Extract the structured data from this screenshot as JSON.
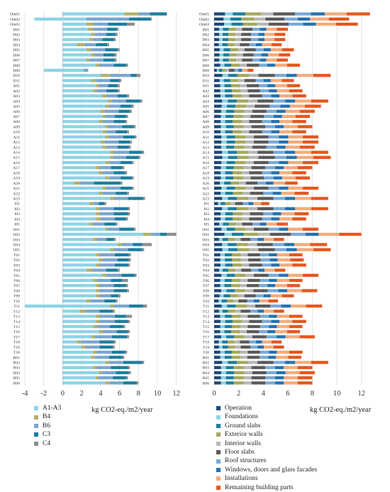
{
  "colors": {
    "A1-A3": "#8ed3e6",
    "B4": "#b4b06a",
    "B6": "#7aa6cf",
    "C3": "#1d7d9e",
    "C4": "#8e8e8e",
    "Operation": "#1e4878",
    "Foundations": "#8ed3e6",
    "Ground slabs": "#1d7d9e",
    "Exterior walls": "#a6a95c",
    "Interior walls": "#b8b8b8",
    "Floor slabs": "#5a5a5a",
    "Roof structures": "#7aaad8",
    "Windows, doors and glass facades": "#2472b0",
    "Installations": "#f4ac7c",
    "Remaining building parts": "#e3581e"
  },
  "chart_data": [
    {
      "type": "bar",
      "orientation": "horizontal",
      "stacked": true,
      "xlabel": "kg CO2-eq./m2/year",
      "xlim": [
        -4,
        13
      ],
      "xticks": [
        -4,
        -2,
        0,
        2,
        4,
        6,
        8,
        10,
        12
      ],
      "grid": true,
      "legend_position": "bottom-left",
      "categories": [
        "Oth01",
        "Oth02",
        "Oth03",
        "D01",
        "D02",
        "D03",
        "D04",
        "D05",
        "D06",
        "D07",
        "D08",
        "D09",
        "D10",
        "D11",
        "A01",
        "A02",
        "A03",
        "A04",
        "A05",
        "A06",
        "A07",
        "A08",
        "A09",
        "A10",
        "A11",
        "A12",
        "A13",
        "A14",
        "A15",
        "A16",
        "A17",
        "A18",
        "A19",
        "A20",
        "A21",
        "A22",
        "A23",
        "I01",
        "I02",
        "I03",
        "I04",
        "I05",
        "O01",
        "O02",
        "O03",
        "O04",
        "O05",
        "T01",
        "T02",
        "T03",
        "T04",
        "T05",
        "T06",
        "T07",
        "T08",
        "T09",
        "T10",
        "T11",
        "T12",
        "T13",
        "T14",
        "T15",
        "T16",
        "T17",
        "T18",
        "T19",
        "T20",
        "B01",
        "B02",
        "B03",
        "B04",
        "B05",
        "B06"
      ],
      "series": [
        {
          "name": "A1-A3",
          "values": [
            6.5,
            2.5,
            2.5,
            2.7,
            3.0,
            2.8,
            1.5,
            2.5,
            3.0,
            2.5,
            3.5,
            2.2,
            4.0,
            3.0,
            3.5,
            3.2,
            4.2,
            4.8,
            4.5,
            4.0,
            4.2,
            3.8,
            4.5,
            4.2,
            4.5,
            4.0,
            4.2,
            5.0,
            5.0,
            4.5,
            3.5,
            3.8,
            4.5,
            1.2,
            4.2,
            3.8,
            5.0,
            2.8,
            3.5,
            3.5,
            3.5,
            2.8,
            4.5,
            8.5,
            3.2,
            5.8,
            5.0,
            3.5,
            3.8,
            3.5,
            2.5,
            4.2,
            3.2,
            3.5,
            3.5,
            3.5,
            2.5,
            5.0,
            1.8,
            3.5,
            3.5,
            3.2,
            3.8,
            3.0,
            1.5,
            2.0,
            3.2,
            3.0,
            4.5,
            3.2,
            3.8,
            3.5,
            4.5
          ]
        },
        {
          "name": "B4",
          "values": [
            1.5,
            0,
            0.8,
            0.5,
            0.4,
            0.4,
            0.8,
            0.5,
            0.3,
            0.3,
            0.4,
            0,
            1.0,
            0.5,
            0.3,
            0.4,
            0.4,
            0.4,
            0.4,
            0.4,
            0.3,
            0.4,
            0.3,
            0.4,
            0.4,
            0.4,
            0.4,
            0.4,
            0.3,
            0.4,
            0.4,
            0.4,
            0.4,
            0.6,
            0.4,
            0.4,
            0.4,
            0.4,
            0.4,
            0.4,
            0.5,
            0.4,
            0.3,
            0.8,
            0.4,
            0.4,
            0.4,
            0.4,
            0.4,
            0.4,
            0.6,
            0.4,
            0.4,
            0.4,
            0.4,
            0.4,
            0.4,
            0.4,
            0.6,
            0.4,
            0.4,
            0.4,
            0.4,
            0.4,
            0.4,
            0.4,
            0.4,
            0.4,
            0.4,
            0.4,
            0.3,
            0.3,
            0.4
          ]
        },
        {
          "name": "B6",
          "values": [
            1.2,
            4.5,
            1.5,
            1.5,
            1.2,
            1.0,
            1.2,
            1.5,
            1.0,
            1.5,
            1.5,
            0.5,
            2.2,
            1.5,
            1.0,
            1.0,
            1.2,
            1.5,
            1.2,
            1.5,
            1.0,
            1.2,
            1.5,
            1.0,
            1.5,
            1.5,
            1.2,
            1.6,
            1.4,
            1.2,
            1.2,
            1.2,
            1.2,
            1.5,
            1.5,
            1.4,
            1.5,
            0.6,
            1.5,
            1.5,
            1.5,
            1.2,
            1.2,
            1.0,
            1.0,
            1.2,
            1.5,
            1.6,
            1.6,
            1.6,
            1.5,
            1.6,
            1.5,
            1.5,
            1.5,
            1.2,
            1.5,
            1.6,
            1.5,
            1.6,
            1.6,
            1.4,
            1.5,
            1.8,
            2.0,
            1.5,
            1.6,
            1.5,
            1.5,
            1.5,
            1.5,
            1.5,
            1.5
          ]
        },
        {
          "name": "C3",
          "values": [
            1.8,
            2.3,
            2.0,
            1.0,
            1.0,
            1.2,
            1.2,
            1.3,
            1.2,
            1.2,
            1.3,
            0,
            0.6,
            1.0,
            1.0,
            1.2,
            1.0,
            1.5,
            1.2,
            1.2,
            1.2,
            1.2,
            1.2,
            1.2,
            1.2,
            1.2,
            1.2,
            1.4,
            1.3,
            1.2,
            1.2,
            1.2,
            1.2,
            2.8,
            1.2,
            1.2,
            1.6,
            0.6,
            1.5,
            1.5,
            1.2,
            1.2,
            1.5,
            0.7,
            0.8,
            1.0,
            1.5,
            1.5,
            1.2,
            1.4,
            1.2,
            1.4,
            1.2,
            1.3,
            1.4,
            0.8,
            1.2,
            1.5,
            1.4,
            1.2,
            1.4,
            1.4,
            1.2,
            1.6,
            1.5,
            1.4,
            1.4,
            1.4,
            2.0,
            1.8,
            1.4,
            1.4,
            1.4
          ]
        },
        {
          "name": "C4",
          "values": [
            0,
            0.1,
            0.8,
            0.2,
            0.2,
            0.2,
            0.2,
            0.2,
            0.2,
            0.2,
            0.2,
            0,
            0.4,
            0.2,
            0.2,
            0.2,
            0.2,
            0.2,
            0.2,
            0.2,
            0.2,
            0.2,
            0.2,
            0.2,
            0.2,
            0.2,
            0.2,
            0.2,
            0.2,
            0.2,
            0.2,
            0.2,
            0.2,
            0.2,
            0.2,
            0.2,
            0.2,
            0.2,
            0.2,
            0.2,
            0.2,
            0.2,
            0.2,
            1.0,
            0.2,
            1.0,
            0.2,
            0.2,
            0.2,
            0.2,
            0.2,
            0.2,
            0.6,
            0.2,
            0.2,
            0.2,
            0.2,
            0.4,
            0.2,
            0.6,
            0.2,
            0.2,
            0.2,
            0.2,
            0.2,
            0.2,
            0.2,
            0.2,
            0.2,
            0.2,
            0.2,
            0.2,
            0.2
          ]
        }
      ],
      "negatives": [
        {
          "category": "Oth02",
          "series": "A1-A3",
          "value": -3.0
        },
        {
          "category": "D09",
          "series": "A1-A3",
          "value": -2.0
        },
        {
          "category": "T11",
          "series": "A1-A3",
          "value": -4.0
        }
      ]
    },
    {
      "type": "bar",
      "orientation": "horizontal",
      "stacked": true,
      "xlabel": "kg CO2-eq./m2/year",
      "xlim": [
        0,
        13
      ],
      "xticks": [
        0,
        2,
        4,
        6,
        8,
        10,
        12
      ],
      "grid": true,
      "legend_position": "bottom-left",
      "categories": [
        "Oth01",
        "Oth02",
        "Oth03",
        "D01",
        "D02",
        "D03",
        "D04",
        "D05",
        "D06",
        "D07",
        "D08",
        "D09",
        "D10",
        "D11",
        "A01",
        "A02",
        "A03",
        "A04",
        "A05",
        "A06",
        "A07",
        "A08",
        "A09",
        "A10",
        "A11",
        "A12",
        "A13",
        "A14",
        "A15",
        "A16",
        "A17",
        "A18",
        "A19",
        "A20",
        "A21",
        "A22",
        "A23",
        "I01",
        "I02",
        "I03",
        "I04",
        "I05",
        "O01",
        "O02",
        "O03",
        "O04",
        "O05",
        "T01",
        "T02",
        "T03",
        "T04",
        "T05",
        "T06",
        "T07",
        "T08",
        "T09",
        "T10",
        "T11",
        "T12",
        "T13",
        "T14",
        "T15",
        "T16",
        "T17",
        "T18",
        "T19",
        "T20",
        "B01",
        "B02",
        "B03",
        "B04",
        "B05",
        "B06"
      ],
      "totals": [
        12.7,
        11.0,
        11.7,
        6.0,
        5.8,
        5.8,
        5.5,
        6.5,
        6.2,
        6.0,
        7.0,
        3.2,
        9.5,
        6.5,
        7.0,
        7.2,
        7.5,
        9.3,
        8.7,
        8.2,
        7.8,
        7.5,
        8.0,
        7.5,
        8.5,
        8.5,
        8.2,
        9.3,
        9.5,
        8.5,
        8.0,
        7.5,
        7.8,
        6.8,
        8.5,
        7.7,
        9.3,
        4.5,
        9.3,
        7.7,
        7.5,
        6.0,
        8.5,
        12.0,
        5.7,
        9.2,
        9.5,
        7.2,
        7.3,
        7.5,
        5.8,
        8.5,
        7.2,
        7.0,
        8.4,
        6.5,
        5.2,
        8.8,
        5.7,
        7.2,
        7.5,
        7.2,
        7.0,
        8.2,
        5.5,
        5.7,
        7.2,
        7.1,
        9.3,
        8.0,
        8.2,
        8.0,
        8.0
      ],
      "segment_shares": [
        0.07,
        0.05,
        0.08,
        0.1,
        0.08,
        0.14,
        0.1,
        0.09,
        0.14,
        0.15
      ],
      "series": [
        {
          "name": "Operation"
        },
        {
          "name": "Foundations"
        },
        {
          "name": "Ground slabs"
        },
        {
          "name": "Exterior walls"
        },
        {
          "name": "Interior walls"
        },
        {
          "name": "Floor slabs"
        },
        {
          "name": "Roof structures"
        },
        {
          "name": "Windows, doors and glass facades"
        },
        {
          "name": "Installations"
        },
        {
          "name": "Remaining building parts"
        }
      ]
    }
  ]
}
